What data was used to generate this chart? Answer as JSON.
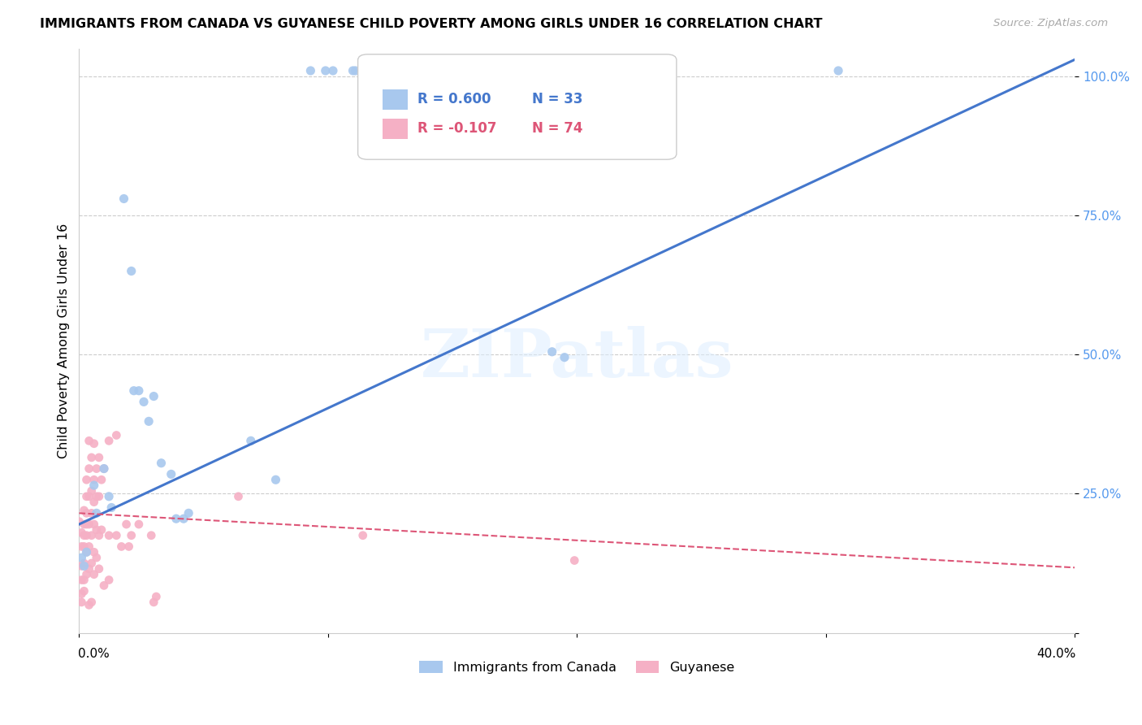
{
  "title": "IMMIGRANTS FROM CANADA VS GUYANESE CHILD POVERTY AMONG GIRLS UNDER 16 CORRELATION CHART",
  "source": "Source: ZipAtlas.com",
  "ylabel": "Child Poverty Among Girls Under 16",
  "yticks": [
    0.0,
    0.25,
    0.5,
    0.75,
    1.0
  ],
  "ytick_labels": [
    "",
    "25.0%",
    "50.0%",
    "75.0%",
    "100.0%"
  ],
  "xlim": [
    0.0,
    0.4
  ],
  "ylim": [
    0.0,
    1.05
  ],
  "watermark": "ZIPatlas",
  "legend_blue_r": "R = 0.600",
  "legend_blue_n": "N = 33",
  "legend_pink_r": "R = -0.107",
  "legend_pink_n": "N = 74",
  "legend_blue_label": "Immigrants from Canada",
  "legend_pink_label": "Guyanese",
  "blue_color": "#a8c8ee",
  "pink_color": "#f5b0c5",
  "blue_line_color": "#4477cc",
  "pink_line_color": "#dd5577",
  "blue_scatter": [
    [
      0.001,
      0.135
    ],
    [
      0.002,
      0.12
    ],
    [
      0.003,
      0.145
    ],
    [
      0.006,
      0.265
    ],
    [
      0.007,
      0.215
    ],
    [
      0.01,
      0.295
    ],
    [
      0.012,
      0.245
    ],
    [
      0.013,
      0.225
    ],
    [
      0.018,
      0.78
    ],
    [
      0.021,
      0.65
    ],
    [
      0.022,
      0.435
    ],
    [
      0.024,
      0.435
    ],
    [
      0.026,
      0.415
    ],
    [
      0.028,
      0.38
    ],
    [
      0.03,
      0.425
    ],
    [
      0.033,
      0.305
    ],
    [
      0.037,
      0.285
    ],
    [
      0.039,
      0.205
    ],
    [
      0.042,
      0.205
    ],
    [
      0.044,
      0.215
    ],
    [
      0.069,
      0.345
    ],
    [
      0.079,
      0.275
    ],
    [
      0.093,
      1.01
    ],
    [
      0.099,
      1.01
    ],
    [
      0.102,
      1.01
    ],
    [
      0.11,
      1.01
    ],
    [
      0.111,
      1.01
    ],
    [
      0.19,
      0.505
    ],
    [
      0.195,
      0.495
    ],
    [
      0.305,
      1.01
    ]
  ],
  "pink_scatter": [
    [
      0.0,
      0.2
    ],
    [
      0.001,
      0.18
    ],
    [
      0.001,
      0.155
    ],
    [
      0.001,
      0.12
    ],
    [
      0.001,
      0.095
    ],
    [
      0.001,
      0.07
    ],
    [
      0.001,
      0.055
    ],
    [
      0.002,
      0.22
    ],
    [
      0.002,
      0.195
    ],
    [
      0.002,
      0.175
    ],
    [
      0.002,
      0.155
    ],
    [
      0.002,
      0.125
    ],
    [
      0.002,
      0.095
    ],
    [
      0.002,
      0.075
    ],
    [
      0.003,
      0.275
    ],
    [
      0.003,
      0.245
    ],
    [
      0.003,
      0.215
    ],
    [
      0.003,
      0.195
    ],
    [
      0.003,
      0.175
    ],
    [
      0.003,
      0.145
    ],
    [
      0.003,
      0.105
    ],
    [
      0.004,
      0.345
    ],
    [
      0.004,
      0.295
    ],
    [
      0.004,
      0.245
    ],
    [
      0.004,
      0.195
    ],
    [
      0.004,
      0.155
    ],
    [
      0.004,
      0.115
    ],
    [
      0.004,
      0.05
    ],
    [
      0.005,
      0.315
    ],
    [
      0.005,
      0.255
    ],
    [
      0.005,
      0.215
    ],
    [
      0.005,
      0.175
    ],
    [
      0.005,
      0.125
    ],
    [
      0.005,
      0.055
    ],
    [
      0.006,
      0.34
    ],
    [
      0.006,
      0.275
    ],
    [
      0.006,
      0.235
    ],
    [
      0.006,
      0.195
    ],
    [
      0.006,
      0.145
    ],
    [
      0.006,
      0.105
    ],
    [
      0.007,
      0.295
    ],
    [
      0.007,
      0.245
    ],
    [
      0.007,
      0.185
    ],
    [
      0.007,
      0.135
    ],
    [
      0.008,
      0.315
    ],
    [
      0.008,
      0.245
    ],
    [
      0.008,
      0.175
    ],
    [
      0.008,
      0.115
    ],
    [
      0.009,
      0.275
    ],
    [
      0.009,
      0.185
    ],
    [
      0.01,
      0.295
    ],
    [
      0.01,
      0.085
    ],
    [
      0.012,
      0.345
    ],
    [
      0.012,
      0.175
    ],
    [
      0.012,
      0.095
    ],
    [
      0.015,
      0.355
    ],
    [
      0.015,
      0.175
    ],
    [
      0.017,
      0.155
    ],
    [
      0.019,
      0.195
    ],
    [
      0.02,
      0.155
    ],
    [
      0.021,
      0.175
    ],
    [
      0.024,
      0.195
    ],
    [
      0.029,
      0.175
    ],
    [
      0.03,
      0.055
    ],
    [
      0.031,
      0.065
    ],
    [
      0.064,
      0.245
    ],
    [
      0.114,
      0.175
    ],
    [
      0.199,
      0.13
    ]
  ],
  "blue_trendline": [
    [
      0.0,
      0.195
    ],
    [
      0.4,
      1.03
    ]
  ],
  "pink_trendline": [
    [
      0.0,
      0.215
    ],
    [
      0.45,
      0.105
    ]
  ]
}
